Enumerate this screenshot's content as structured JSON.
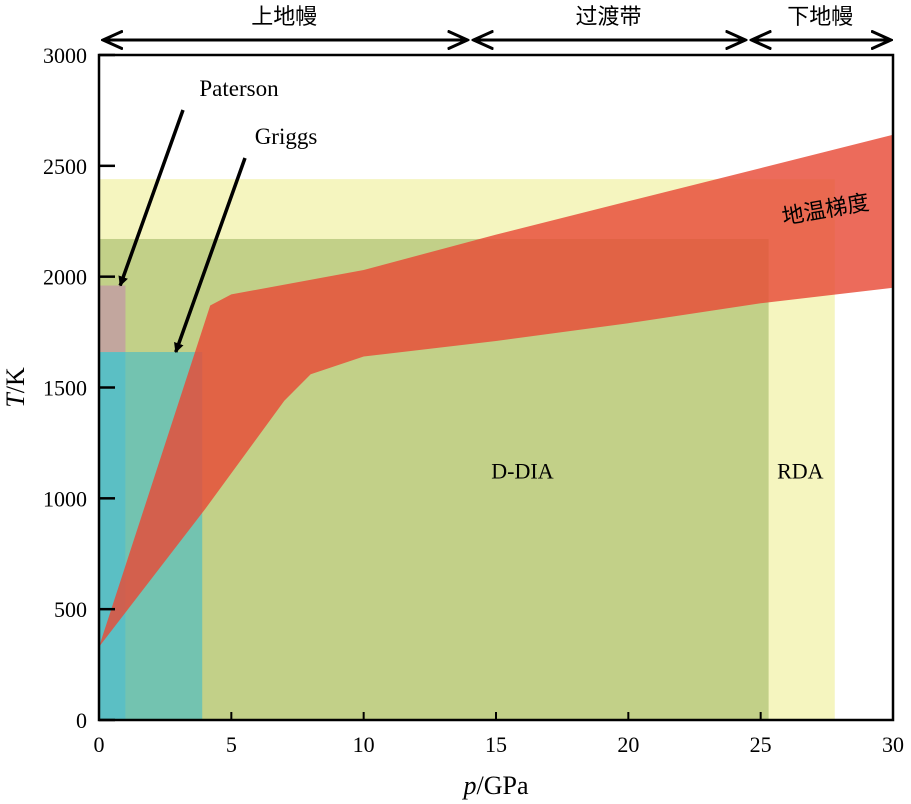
{
  "chart_data": {
    "type": "area",
    "xlabel": {
      "italic": "p",
      "rest": "/GPa"
    },
    "ylabel": {
      "italic": "T",
      "rest": "/K"
    },
    "xlim": [
      0,
      30
    ],
    "ylim": [
      0,
      3000
    ],
    "xticks": [
      0,
      5,
      10,
      15,
      20,
      25,
      30
    ],
    "yticks": [
      0,
      500,
      1000,
      1500,
      2000,
      2500,
      3000
    ],
    "zones": [
      {
        "label": "上地幔",
        "x": [
          0,
          14
        ]
      },
      {
        "label": "过渡带",
        "x": [
          14,
          24.5
        ]
      },
      {
        "label": "下地幔",
        "x": [
          24.5,
          30
        ]
      }
    ],
    "apparatus": [
      {
        "name": "RDA",
        "p_max": 27.8,
        "T_max": 2440,
        "color": "#f5f5bf"
      },
      {
        "name": "D-DIA",
        "p_max": 25.3,
        "T_max": 2170,
        "color": "#c2d088"
      },
      {
        "name": "Griggs",
        "p_max": 3.9,
        "T_max": 1660,
        "color": "#73c3b0"
      },
      {
        "name": "Paterson",
        "p_max": 1.0,
        "T_max": 1960,
        "color": "#c2a69e"
      }
    ],
    "cyan_strip": {
      "p_max": 1.0,
      "T_max": 1660,
      "color": "#5bbfc4"
    },
    "geotherm": {
      "label": "地温梯度",
      "color": "#e84a37",
      "upper": [
        [
          0,
          330
        ],
        [
          4.2,
          1870
        ],
        [
          5,
          1920
        ],
        [
          10,
          2030
        ],
        [
          15,
          2190
        ],
        [
          20,
          2340
        ],
        [
          25,
          2490
        ],
        [
          30,
          2640
        ]
      ],
      "lower": [
        [
          30,
          1950
        ],
        [
          25,
          1880
        ],
        [
          20,
          1790
        ],
        [
          15,
          1710
        ],
        [
          10,
          1640
        ],
        [
          8,
          1560
        ],
        [
          7,
          1440
        ],
        [
          4,
          950
        ],
        [
          0,
          330
        ]
      ]
    },
    "annotations": [
      {
        "text": "Paterson",
        "arrow_to": [
          0.8,
          1960
        ]
      },
      {
        "text": "Griggs",
        "arrow_to": [
          2.9,
          1660
        ]
      }
    ]
  }
}
